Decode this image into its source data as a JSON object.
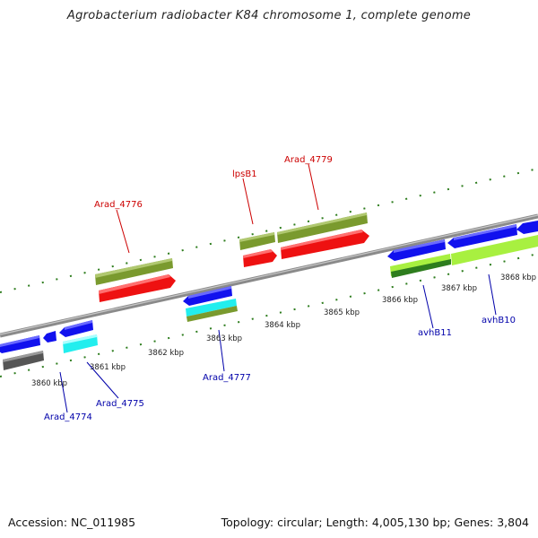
{
  "title": "Agrobacterium radiobacter K84 chromosome 1, complete genome",
  "footer": {
    "accession": "Accession: NC_011985",
    "topology": "Topology: circular; Length: 4,005,130 bp; Genes: 3,804"
  },
  "colors": {
    "backbone": "#8a8a8a",
    "tick": "#2e7d1e",
    "label_top": "#cc0000",
    "label_bottom": "#0000aa",
    "olive": "#7a9a2e",
    "red": "#ee1111",
    "blue": "#1111ee",
    "cyan": "#22eeee",
    "gray": "#555555",
    "lime": "#a8f040"
  },
  "scale_labels": [
    "3860 kbp",
    "3861 kbp",
    "3862 kbp",
    "3863 kbp",
    "3864 kbp",
    "3865 kbp",
    "3866 kbp",
    "3867 kbp",
    "3868 kbp"
  ],
  "gene_labels_top": [
    "Arad_4776",
    "lpsB1",
    "Arad_4779"
  ],
  "gene_labels_bottom": [
    "Arad_4774",
    "Arad_4775",
    "Arad_4777",
    "avhB11",
    "avhB10"
  ]
}
